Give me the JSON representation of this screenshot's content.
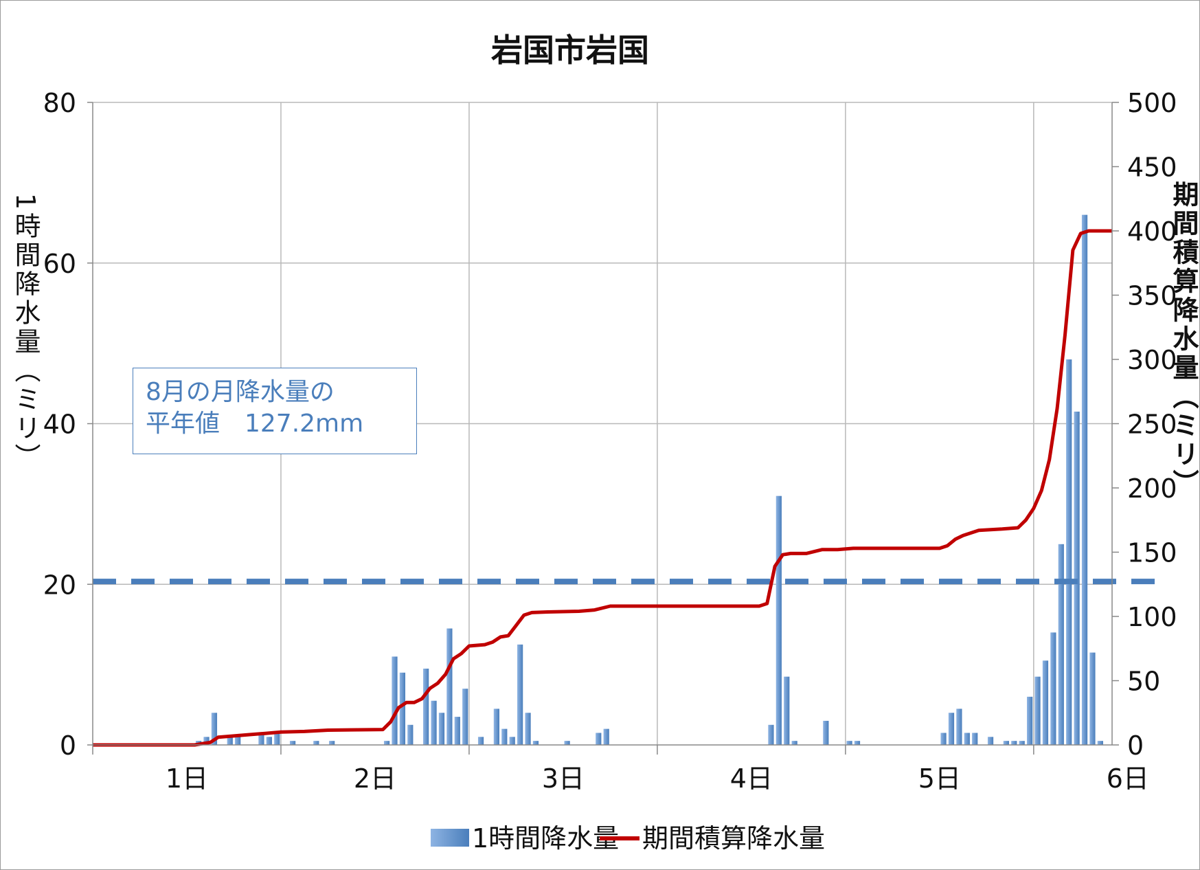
{
  "chart_data": {
    "type": "bar+line",
    "title": "岩国市岩国",
    "ylabel_left": "1時間降水量（ミリ）",
    "ylabel_right": "期間積算降水量（ミリ）",
    "y_left_ticks": [
      "0",
      "20",
      "40",
      "60",
      "80"
    ],
    "y_right_ticks": [
      "0",
      "50",
      "100",
      "150",
      "200",
      "250",
      "300",
      "350",
      "400",
      "450",
      "500"
    ],
    "ylim_left": [
      0,
      80
    ],
    "ylim_right": [
      0,
      500
    ],
    "x_ticks": [
      "1日",
      "2日",
      "3日",
      "4日",
      "5日",
      "6日"
    ],
    "x_range_hours": [
      0,
      130
    ],
    "grid": true,
    "legend_position": "bottom",
    "reference_line": {
      "axis": "right",
      "value": 127.2,
      "style": "dashed",
      "color": "#4a7ebb",
      "label_lines": [
        "8月の月降水量の",
        "平年値　127.2mm"
      ]
    },
    "series": [
      {
        "name": "1時間降水量",
        "type": "bar",
        "axis": "left",
        "color": "#4a7ebb",
        "points": [
          [
            13.5,
            0.5
          ],
          [
            14.5,
            1
          ],
          [
            15.5,
            4
          ],
          [
            17.5,
            1
          ],
          [
            18.5,
            1
          ],
          [
            21.5,
            1.5
          ],
          [
            22.5,
            1
          ],
          [
            23.5,
            1.5
          ],
          [
            25.5,
            0.5
          ],
          [
            28.5,
            0.5
          ],
          [
            30.5,
            0.5
          ],
          [
            37.5,
            0.5
          ],
          [
            38.5,
            11
          ],
          [
            39.5,
            9
          ],
          [
            40.5,
            2.5
          ],
          [
            42.5,
            9.5
          ],
          [
            43.5,
            5.5
          ],
          [
            44.5,
            4
          ],
          [
            45.5,
            14.5
          ],
          [
            46.5,
            3.5
          ],
          [
            47.5,
            7
          ],
          [
            49.5,
            1
          ],
          [
            51.5,
            4.5
          ],
          [
            52.5,
            2
          ],
          [
            53.5,
            1
          ],
          [
            54.5,
            12.5
          ],
          [
            55.5,
            4
          ],
          [
            56.5,
            0.5
          ],
          [
            60.5,
            0.5
          ],
          [
            64.5,
            1.5
          ],
          [
            65.5,
            2
          ],
          [
            86.5,
            2.5
          ],
          [
            87.5,
            31
          ],
          [
            88.5,
            8.5
          ],
          [
            89.5,
            0.5
          ],
          [
            93.5,
            3
          ],
          [
            96.5,
            0.5
          ],
          [
            97.5,
            0.5
          ],
          [
            108.5,
            1.5
          ],
          [
            109.5,
            4
          ],
          [
            110.5,
            4.5
          ],
          [
            111.5,
            1.5
          ],
          [
            112.5,
            1.5
          ],
          [
            114.5,
            1
          ],
          [
            116.5,
            0.5
          ],
          [
            117.5,
            0.5
          ],
          [
            118.5,
            0.5
          ],
          [
            119.5,
            6
          ],
          [
            120.5,
            8.5
          ],
          [
            121.5,
            10.5
          ],
          [
            122.5,
            14
          ],
          [
            123.5,
            25
          ],
          [
            124.5,
            48
          ],
          [
            125.5,
            41.5
          ],
          [
            126.5,
            66
          ],
          [
            127.5,
            11.5
          ],
          [
            128.5,
            0.5
          ]
        ]
      },
      {
        "name": "期間積算降水量",
        "type": "line",
        "axis": "right",
        "color": "#c00000",
        "points": [
          [
            0,
            0
          ],
          [
            13,
            0
          ],
          [
            14,
            1
          ],
          [
            15,
            2
          ],
          [
            16,
            6
          ],
          [
            18,
            7
          ],
          [
            20,
            8
          ],
          [
            22,
            9
          ],
          [
            24,
            10
          ],
          [
            27,
            10.5
          ],
          [
            30,
            11.5
          ],
          [
            37,
            12
          ],
          [
            38,
            18
          ],
          [
            39,
            29
          ],
          [
            40,
            33
          ],
          [
            41,
            33
          ],
          [
            42,
            36
          ],
          [
            43,
            44
          ],
          [
            44,
            48
          ],
          [
            45,
            55
          ],
          [
            46,
            67
          ],
          [
            47,
            71
          ],
          [
            48,
            77
          ],
          [
            50,
            78
          ],
          [
            51,
            80
          ],
          [
            52,
            84
          ],
          [
            53,
            85
          ],
          [
            54,
            93
          ],
          [
            55,
            101
          ],
          [
            56,
            103
          ],
          [
            58,
            103.5
          ],
          [
            62,
            104
          ],
          [
            64,
            105
          ],
          [
            66,
            108
          ],
          [
            70,
            108
          ],
          [
            85,
            108
          ],
          [
            86,
            110
          ],
          [
            87,
            139
          ],
          [
            88,
            148
          ],
          [
            89,
            149
          ],
          [
            91,
            149
          ],
          [
            93,
            152
          ],
          [
            95,
            152
          ],
          [
            97,
            153
          ],
          [
            108,
            153
          ],
          [
            109,
            155
          ],
          [
            110,
            160
          ],
          [
            111,
            163
          ],
          [
            113,
            167
          ],
          [
            116,
            168
          ],
          [
            118,
            169
          ],
          [
            119,
            175
          ],
          [
            120,
            184
          ],
          [
            121,
            198
          ],
          [
            122,
            222
          ],
          [
            123,
            262
          ],
          [
            124,
            319
          ],
          [
            125,
            385
          ],
          [
            126,
            398
          ],
          [
            127,
            400
          ],
          [
            130,
            400
          ]
        ]
      }
    ]
  }
}
